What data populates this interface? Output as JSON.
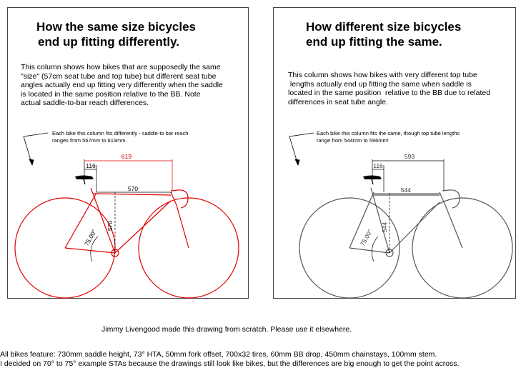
{
  "left_panel": {
    "title_lines": [
      "How the same size bicycles",
      "end up fitting differently."
    ],
    "description_lines": [
      "This column shows how bikes that are supposedly the same",
      "\"size\" (57cm seat tube and top tube) but different seat tube",
      "angles actually end up fitting very differently when the saddle",
      "is located in the same position relative to the BB. Note",
      "actual saddle-to-bar reach differences."
    ],
    "note_lines": [
      "Each bike this column fits differently - saddle-to bar reach",
      "ranges from 567mm to 619mm."
    ],
    "dimensions": {
      "reach_max": "619",
      "setback": "116",
      "top_tube": "570",
      "seat_tube": "570",
      "seat_angle": "75.00°"
    },
    "line_color": "#e00000"
  },
  "right_panel": {
    "title_lines": [
      "How different size bicycles",
      "end up fitting the same."
    ],
    "description_lines": [
      "This column shows how bikes with very different top tube",
      " lengths actually end up fitting the same when saddle is",
      "located in the same position  relative to the BB due to related",
      "differences in seat tube angle."
    ],
    "note_lines": [
      "Each bike this column fits the same, though top tube lengths",
      "range from 544mm to 596mm!"
    ],
    "dimensions": {
      "reach": "593",
      "setback": "116",
      "top_tube": "544",
      "seat_tube": "544",
      "seat_angle": "75.00°"
    },
    "line_color": "#555555"
  },
  "footer": {
    "credit": "Jimmy Livengood made this drawing from scratch. Please use it elsewhere.",
    "line1": "All bikes feature: 730mm saddle height, 73° HTA, 50mm fork offset, 700x32 tires, 60mm BB drop, 450mm chainstays, 100mm stem.",
    "line2": "I decided on 70° to 75° example STAs because the drawings still look like bikes, but the differences are big enough to get the point across."
  }
}
